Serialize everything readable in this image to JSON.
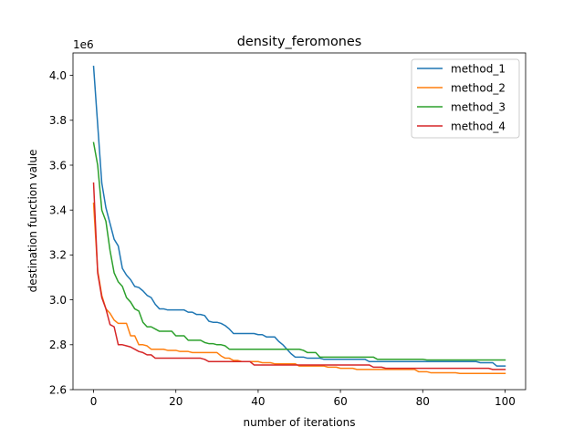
{
  "chart_data": {
    "type": "line",
    "title": "density_feromones",
    "xlabel": "number of iterations",
    "ylabel": "destination function value",
    "y_offset_label": "1e6",
    "xlim": [
      -5,
      105
    ],
    "ylim": [
      2.6,
      4.1
    ],
    "x_ticks": [
      0,
      20,
      40,
      60,
      80,
      100
    ],
    "x_tick_labels": [
      "0",
      "20",
      "40",
      "60",
      "80",
      "100"
    ],
    "y_ticks": [
      2.6,
      2.8,
      3.0,
      3.2,
      3.4,
      3.6,
      3.8,
      4.0
    ],
    "y_tick_labels": [
      "2.6",
      "2.8",
      "3.0",
      "3.2",
      "3.4",
      "3.6",
      "3.8",
      "4.0"
    ],
    "grid": false,
    "legend_position": "upper right",
    "unit_scale": "1e6",
    "series": [
      {
        "name": "method_1",
        "color": "#1f77b4",
        "x": [
          0,
          1,
          2,
          3,
          4,
          5,
          6,
          7,
          8,
          9,
          10,
          11,
          12,
          13,
          14,
          15,
          16,
          17,
          18,
          19,
          20,
          21,
          22,
          23,
          24,
          25,
          26,
          27,
          28,
          29,
          30,
          31,
          32,
          33,
          34,
          35,
          36,
          37,
          38,
          39,
          40,
          41,
          42,
          43,
          44,
          45,
          46,
          47,
          48,
          49,
          50,
          51,
          52,
          53,
          54,
          55,
          56,
          57,
          58,
          59,
          60,
          61,
          62,
          63,
          64,
          65,
          66,
          67,
          68,
          69,
          70,
          71,
          72,
          73,
          74,
          75,
          76,
          77,
          78,
          79,
          80,
          81,
          82,
          83,
          84,
          85,
          86,
          87,
          88,
          89,
          90,
          91,
          92,
          93,
          94,
          95,
          96,
          97,
          98,
          99,
          100
        ],
        "y": [
          4.04,
          3.78,
          3.52,
          3.41,
          3.34,
          3.27,
          3.24,
          3.14,
          3.11,
          3.09,
          3.06,
          3.055,
          3.04,
          3.02,
          3.01,
          2.98,
          2.96,
          2.96,
          2.955,
          2.955,
          2.955,
          2.955,
          2.955,
          2.945,
          2.945,
          2.935,
          2.935,
          2.93,
          2.905,
          2.9,
          2.9,
          2.895,
          2.885,
          2.87,
          2.85,
          2.85,
          2.85,
          2.85,
          2.85,
          2.85,
          2.845,
          2.845,
          2.835,
          2.835,
          2.835,
          2.815,
          2.8,
          2.78,
          2.76,
          2.745,
          2.745,
          2.745,
          2.74,
          2.74,
          2.74,
          2.74,
          2.735,
          2.735,
          2.735,
          2.735,
          2.735,
          2.735,
          2.735,
          2.735,
          2.735,
          2.735,
          2.735,
          2.725,
          2.725,
          2.725,
          2.725,
          2.725,
          2.725,
          2.725,
          2.725,
          2.725,
          2.725,
          2.725,
          2.725,
          2.725,
          2.725,
          2.725,
          2.725,
          2.725,
          2.725,
          2.725,
          2.725,
          2.725,
          2.725,
          2.725,
          2.725,
          2.725,
          2.725,
          2.725,
          2.72,
          2.72,
          2.72,
          2.72,
          2.705,
          2.705,
          2.705
        ]
      },
      {
        "name": "method_2",
        "color": "#ff7f0e",
        "x": [
          0,
          1,
          2,
          3,
          4,
          5,
          6,
          7,
          8,
          9,
          10,
          11,
          12,
          13,
          14,
          15,
          16,
          17,
          18,
          19,
          20,
          21,
          22,
          23,
          24,
          25,
          26,
          27,
          28,
          29,
          30,
          31,
          32,
          33,
          34,
          35,
          36,
          37,
          38,
          39,
          40,
          41,
          42,
          43,
          44,
          45,
          46,
          47,
          48,
          49,
          50,
          51,
          52,
          53,
          54,
          55,
          56,
          57,
          58,
          59,
          60,
          61,
          62,
          63,
          64,
          65,
          66,
          67,
          68,
          69,
          70,
          71,
          72,
          73,
          74,
          75,
          76,
          77,
          78,
          79,
          80,
          81,
          82,
          83,
          84,
          85,
          86,
          87,
          88,
          89,
          90,
          91,
          92,
          93,
          94,
          95,
          96,
          97,
          98,
          99,
          100
        ],
        "y": [
          3.43,
          3.13,
          3.02,
          2.96,
          2.94,
          2.91,
          2.895,
          2.895,
          2.895,
          2.84,
          2.84,
          2.8,
          2.8,
          2.795,
          2.78,
          2.78,
          2.78,
          2.78,
          2.775,
          2.775,
          2.775,
          2.77,
          2.77,
          2.77,
          2.765,
          2.765,
          2.765,
          2.765,
          2.765,
          2.765,
          2.765,
          2.75,
          2.74,
          2.74,
          2.73,
          2.73,
          2.725,
          2.725,
          2.725,
          2.725,
          2.725,
          2.72,
          2.72,
          2.72,
          2.715,
          2.715,
          2.715,
          2.715,
          2.715,
          2.715,
          2.705,
          2.705,
          2.705,
          2.705,
          2.705,
          2.705,
          2.705,
          2.7,
          2.7,
          2.7,
          2.695,
          2.695,
          2.695,
          2.695,
          2.69,
          2.69,
          2.69,
          2.69,
          2.69,
          2.69,
          2.69,
          2.69,
          2.69,
          2.69,
          2.69,
          2.69,
          2.69,
          2.69,
          2.69,
          2.68,
          2.68,
          2.68,
          2.675,
          2.675,
          2.675,
          2.675,
          2.675,
          2.675,
          2.675,
          2.672,
          2.672,
          2.672,
          2.672,
          2.672,
          2.672,
          2.672,
          2.672,
          2.672,
          2.672,
          2.672,
          2.672
        ]
      },
      {
        "name": "method_3",
        "color": "#2ca02c",
        "x": [
          0,
          1,
          2,
          3,
          4,
          5,
          6,
          7,
          8,
          9,
          10,
          11,
          12,
          13,
          14,
          15,
          16,
          17,
          18,
          19,
          20,
          21,
          22,
          23,
          24,
          25,
          26,
          27,
          28,
          29,
          30,
          31,
          32,
          33,
          34,
          35,
          36,
          37,
          38,
          39,
          40,
          41,
          42,
          43,
          44,
          45,
          46,
          47,
          48,
          49,
          50,
          51,
          52,
          53,
          54,
          55,
          56,
          57,
          58,
          59,
          60,
          61,
          62,
          63,
          64,
          65,
          66,
          67,
          68,
          69,
          70,
          71,
          72,
          73,
          74,
          75,
          76,
          77,
          78,
          79,
          80,
          81,
          82,
          83,
          84,
          85,
          86,
          87,
          88,
          89,
          90,
          91,
          92,
          93,
          94,
          95,
          96,
          97,
          98,
          99,
          100
        ],
        "y": [
          3.7,
          3.6,
          3.4,
          3.35,
          3.22,
          3.12,
          3.08,
          3.06,
          3.01,
          2.99,
          2.96,
          2.95,
          2.9,
          2.88,
          2.88,
          2.87,
          2.86,
          2.86,
          2.86,
          2.86,
          2.84,
          2.84,
          2.84,
          2.82,
          2.82,
          2.82,
          2.82,
          2.81,
          2.805,
          2.805,
          2.8,
          2.8,
          2.795,
          2.78,
          2.78,
          2.78,
          2.78,
          2.78,
          2.78,
          2.78,
          2.78,
          2.78,
          2.78,
          2.78,
          2.78,
          2.78,
          2.78,
          2.78,
          2.78,
          2.78,
          2.78,
          2.775,
          2.765,
          2.765,
          2.765,
          2.745,
          2.745,
          2.745,
          2.745,
          2.745,
          2.745,
          2.745,
          2.745,
          2.745,
          2.745,
          2.745,
          2.745,
          2.745,
          2.745,
          2.735,
          2.735,
          2.735,
          2.735,
          2.735,
          2.735,
          2.735,
          2.735,
          2.735,
          2.735,
          2.735,
          2.735,
          2.732,
          2.732,
          2.732,
          2.732,
          2.732,
          2.732,
          2.732,
          2.732,
          2.732,
          2.732,
          2.732,
          2.732,
          2.732,
          2.732,
          2.732,
          2.732,
          2.732,
          2.732,
          2.732,
          2.732
        ]
      },
      {
        "name": "method_4",
        "color": "#d62728",
        "x": [
          0,
          1,
          2,
          3,
          4,
          5,
          6,
          7,
          8,
          9,
          10,
          11,
          12,
          13,
          14,
          15,
          16,
          17,
          18,
          19,
          20,
          21,
          22,
          23,
          24,
          25,
          26,
          27,
          28,
          29,
          30,
          31,
          32,
          33,
          34,
          35,
          36,
          37,
          38,
          39,
          40,
          41,
          42,
          43,
          44,
          45,
          46,
          47,
          48,
          49,
          50,
          51,
          52,
          53,
          54,
          55,
          56,
          57,
          58,
          59,
          60,
          61,
          62,
          63,
          64,
          65,
          66,
          67,
          68,
          69,
          70,
          71,
          72,
          73,
          74,
          75,
          76,
          77,
          78,
          79,
          80,
          81,
          82,
          83,
          84,
          85,
          86,
          87,
          88,
          89,
          90,
          91,
          92,
          93,
          94,
          95,
          96,
          97,
          98,
          99,
          100
        ],
        "y": [
          3.52,
          3.12,
          3.01,
          2.96,
          2.89,
          2.88,
          2.8,
          2.8,
          2.795,
          2.79,
          2.78,
          2.77,
          2.765,
          2.755,
          2.755,
          2.74,
          2.74,
          2.74,
          2.74,
          2.74,
          2.74,
          2.74,
          2.74,
          2.74,
          2.74,
          2.74,
          2.74,
          2.735,
          2.725,
          2.725,
          2.725,
          2.725,
          2.725,
          2.725,
          2.725,
          2.725,
          2.725,
          2.725,
          2.725,
          2.71,
          2.71,
          2.71,
          2.71,
          2.71,
          2.71,
          2.71,
          2.71,
          2.71,
          2.71,
          2.71,
          2.71,
          2.71,
          2.71,
          2.71,
          2.71,
          2.71,
          2.71,
          2.71,
          2.71,
          2.71,
          2.71,
          2.71,
          2.71,
          2.71,
          2.71,
          2.71,
          2.71,
          2.71,
          2.7,
          2.7,
          2.7,
          2.695,
          2.695,
          2.695,
          2.695,
          2.695,
          2.695,
          2.695,
          2.695,
          2.695,
          2.695,
          2.695,
          2.695,
          2.695,
          2.695,
          2.695,
          2.695,
          2.695,
          2.695,
          2.695,
          2.695,
          2.695,
          2.695,
          2.695,
          2.695,
          2.695,
          2.695,
          2.69,
          2.69,
          2.69,
          2.69
        ]
      }
    ]
  }
}
